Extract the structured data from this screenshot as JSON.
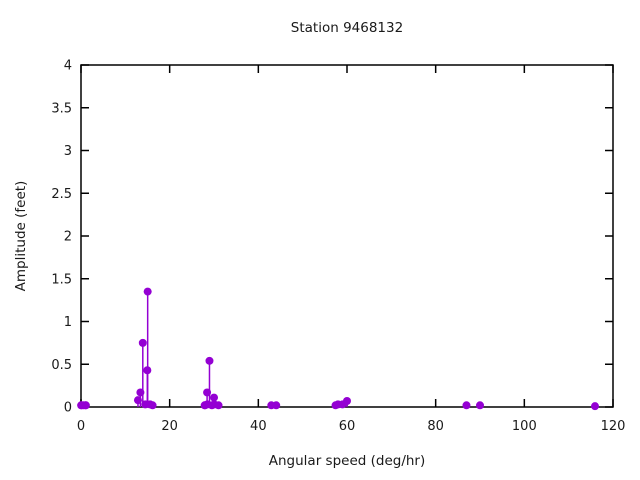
{
  "chart_data": {
    "type": "stem",
    "title": "Station 9468132",
    "xlabel": "Angular speed (deg/hr)",
    "ylabel": "Amplitude (feet)",
    "xlim": [
      0,
      120
    ],
    "ylim": [
      0,
      4
    ],
    "x_ticks": [
      "0",
      "20",
      "40",
      "60",
      "80",
      "100",
      "120"
    ],
    "y_ticks": [
      "0",
      "0.5",
      "1",
      "1.5",
      "2",
      "2.5",
      "3",
      "3.5",
      "4"
    ],
    "grid": false,
    "legend": false,
    "colors": {
      "marker": "#9400d3",
      "stem": "#9400d3",
      "axis": "#000000",
      "text": "#1a1a1a",
      "background": "#ffffff"
    },
    "points": [
      {
        "x": 0.04,
        "y": 0.02
      },
      {
        "x": 0.08,
        "y": 0.02
      },
      {
        "x": 0.54,
        "y": 0.02
      },
      {
        "x": 1.02,
        "y": 0.02
      },
      {
        "x": 1.1,
        "y": 0.02
      },
      {
        "x": 12.85,
        "y": 0.08
      },
      {
        "x": 13.4,
        "y": 0.17
      },
      {
        "x": 13.94,
        "y": 0.75
      },
      {
        "x": 14.5,
        "y": 0.03
      },
      {
        "x": 14.96,
        "y": 0.43
      },
      {
        "x": 15.04,
        "y": 1.35
      },
      {
        "x": 15.59,
        "y": 0.03
      },
      {
        "x": 16.14,
        "y": 0.02
      },
      {
        "x": 27.9,
        "y": 0.02
      },
      {
        "x": 27.97,
        "y": 0.02
      },
      {
        "x": 28.44,
        "y": 0.17
      },
      {
        "x": 28.51,
        "y": 0.03
      },
      {
        "x": 28.98,
        "y": 0.54
      },
      {
        "x": 29.53,
        "y": 0.02
      },
      {
        "x": 30.0,
        "y": 0.11
      },
      {
        "x": 30.08,
        "y": 0.03
      },
      {
        "x": 31.02,
        "y": 0.02
      },
      {
        "x": 42.93,
        "y": 0.02
      },
      {
        "x": 44.03,
        "y": 0.02
      },
      {
        "x": 57.42,
        "y": 0.02
      },
      {
        "x": 57.97,
        "y": 0.03
      },
      {
        "x": 58.98,
        "y": 0.03
      },
      {
        "x": 60.0,
        "y": 0.07
      },
      {
        "x": 86.95,
        "y": 0.02
      },
      {
        "x": 90.0,
        "y": 0.02
      },
      {
        "x": 115.94,
        "y": 0.01
      }
    ]
  }
}
